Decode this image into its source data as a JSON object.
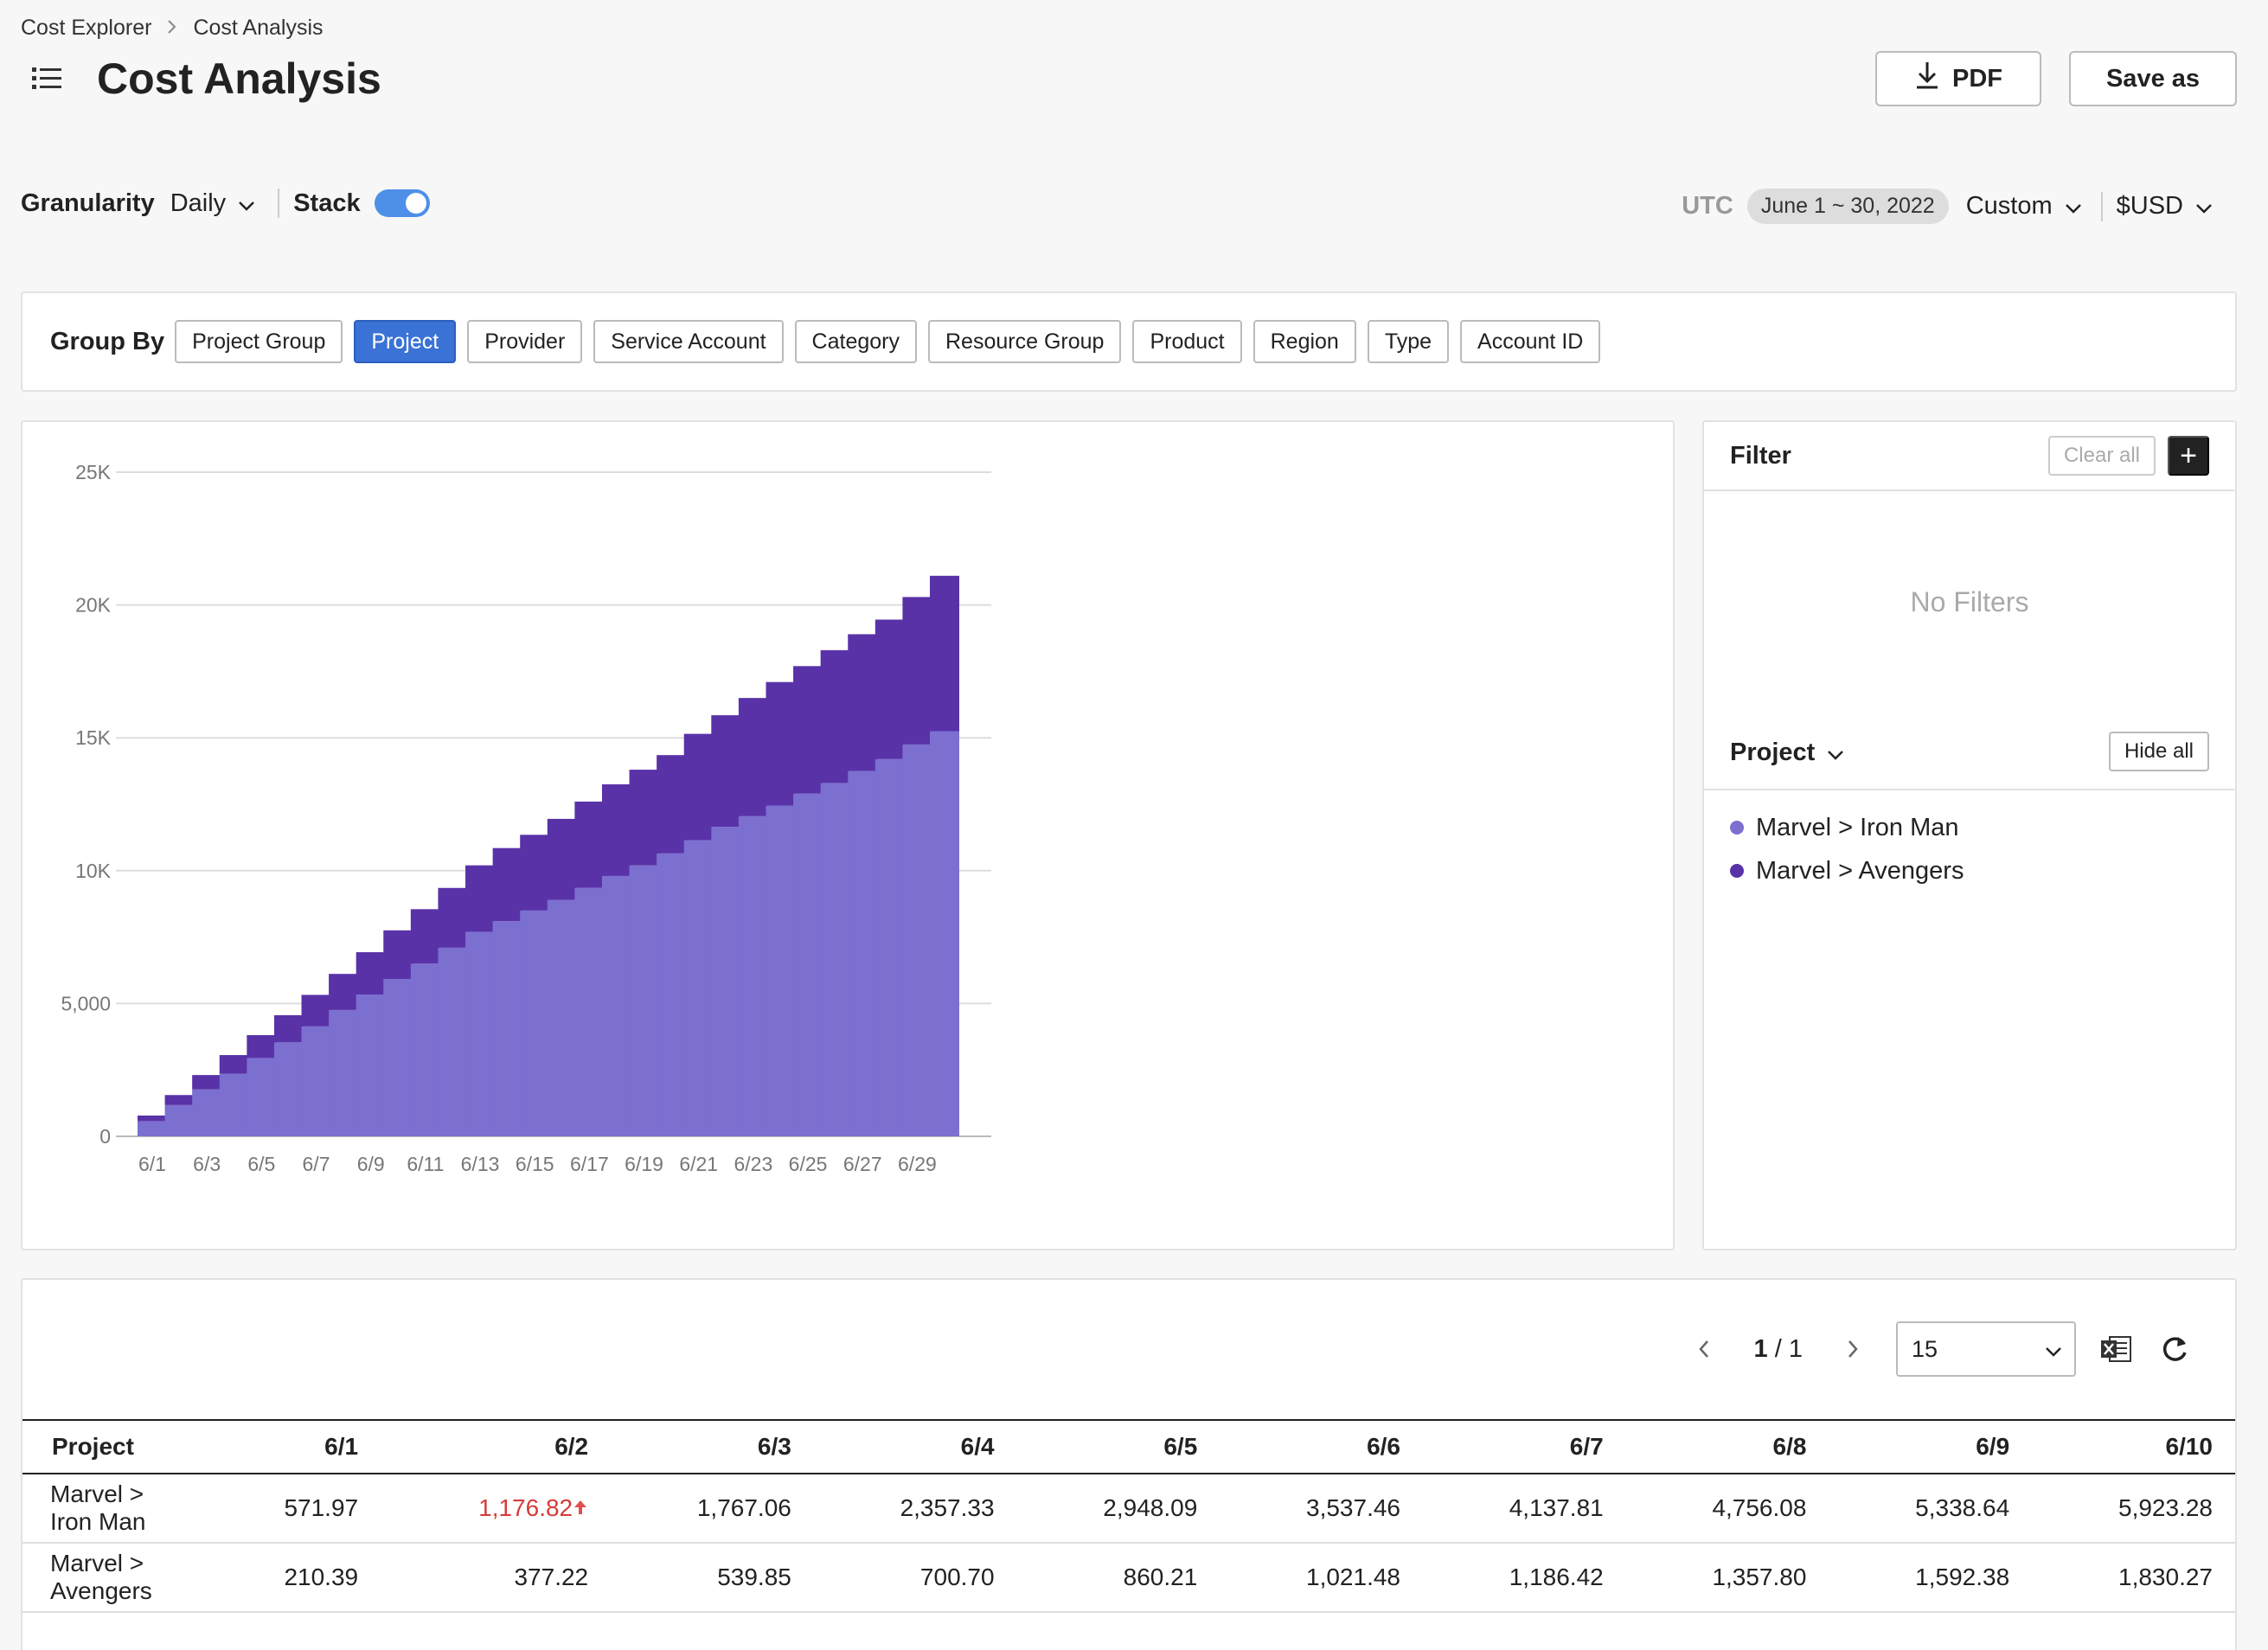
{
  "breadcrumb": {
    "parent": "Cost Explorer",
    "current": "Cost Analysis"
  },
  "header": {
    "title": "Cost Analysis",
    "pdf_label": "PDF",
    "save_as_label": "Save as"
  },
  "controls": {
    "granularity_label": "Granularity",
    "granularity_value": "Daily",
    "stack_label": "Stack",
    "stack_on": true,
    "timezone": "UTC",
    "date_range": "June 1 ~ 30, 2022",
    "period_value": "Custom",
    "currency_value": "$USD"
  },
  "group_by": {
    "label": "Group By",
    "options": [
      "Project Group",
      "Project",
      "Provider",
      "Service Account",
      "Category",
      "Resource Group",
      "Product",
      "Region",
      "Type",
      "Account ID"
    ],
    "selected": "Project"
  },
  "chart_data": {
    "type": "bar",
    "stacked": true,
    "x": [
      "6/1",
      "6/2",
      "6/3",
      "6/4",
      "6/5",
      "6/6",
      "6/7",
      "6/8",
      "6/9",
      "6/10",
      "6/11",
      "6/12",
      "6/13",
      "6/14",
      "6/15",
      "6/16",
      "6/17",
      "6/18",
      "6/19",
      "6/20",
      "6/21",
      "6/22",
      "6/23",
      "6/24",
      "6/25",
      "6/26",
      "6/27",
      "6/28",
      "6/29",
      "6/30"
    ],
    "x_tick_labels": [
      "6/1",
      "6/3",
      "6/5",
      "6/7",
      "6/9",
      "6/11",
      "6/13",
      "6/15",
      "6/17",
      "6/19",
      "6/21",
      "6/23",
      "6/25",
      "6/27",
      "6/29"
    ],
    "y_tick_labels": [
      "0",
      "5,000",
      "10K",
      "15K",
      "20K",
      "25K"
    ],
    "ylim": [
      0,
      25000
    ],
    "grid": true,
    "series": [
      {
        "name": "Marvel > Iron Man",
        "color": "#7b6fd0",
        "values": [
          571.97,
          1176.82,
          1767.06,
          2357.33,
          2948.09,
          3537.46,
          4137.81,
          4756.08,
          5338.64,
          5923.28,
          6500,
          7100,
          7700,
          8100,
          8500,
          8900,
          9350,
          9800,
          10200,
          10650,
          11150,
          11650,
          12050,
          12450,
          12900,
          13300,
          13750,
          14200,
          14750,
          15250
        ]
      },
      {
        "name": "Marvel > Avengers",
        "color": "#5932a8",
        "values": [
          210.39,
          377.22,
          539.85,
          700.7,
          860.21,
          1021.48,
          1186.42,
          1357.8,
          1592.38,
          1830.27,
          2050,
          2250,
          2500,
          2750,
          2850,
          3050,
          3250,
          3450,
          3600,
          3700,
          4000,
          4200,
          4450,
          4650,
          4800,
          5000,
          5150,
          5250,
          5550,
          5850
        ]
      }
    ]
  },
  "filter": {
    "title": "Filter",
    "clear_all_label": "Clear all",
    "add_label": "+",
    "empty_text": "No Filters",
    "legend_title": "Project",
    "hide_all_label": "Hide all",
    "legend_items": [
      {
        "label": "Marvel > Iron Man",
        "color": "#7b6fd0"
      },
      {
        "label": "Marvel > Avengers",
        "color": "#5932a8"
      }
    ]
  },
  "table": {
    "page_current": "1",
    "page_total": "1",
    "page_size": "15",
    "columns": [
      "Project",
      "6/1",
      "6/2",
      "6/3",
      "6/4",
      "6/5",
      "6/6",
      "6/7",
      "6/8",
      "6/9",
      "6/10"
    ],
    "rows": [
      {
        "project": "Marvel > Iron Man",
        "values": [
          "571.97",
          "1,176.82",
          "1,767.06",
          "2,357.33",
          "2,948.09",
          "3,537.46",
          "4,137.81",
          "4,756.08",
          "5,338.64",
          "5,923.28"
        ],
        "highlight_index": 1
      },
      {
        "project": "Marvel > Avengers",
        "values": [
          "210.39",
          "377.22",
          "539.85",
          "700.70",
          "860.21",
          "1,021.48",
          "1,186.42",
          "1,357.80",
          "1,592.38",
          "1,830.27"
        ]
      }
    ]
  }
}
